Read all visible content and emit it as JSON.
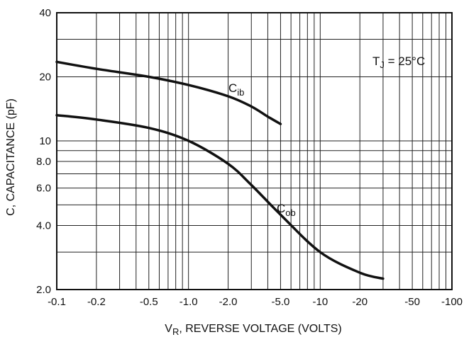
{
  "chart_data": {
    "type": "line",
    "title": "",
    "xlabel_main": "V",
    "xlabel_sub": "R",
    "xlabel_rest": ", REVERSE VOLTAGE (VOLTS)",
    "ylabel": "C, CAPACITANCE (pF)",
    "x_scale": "log",
    "y_scale": "log",
    "xlim": [
      0.1,
      100
    ],
    "ylim": [
      2,
      40
    ],
    "grid": true,
    "x_ticks": [
      {
        "value": 0.1,
        "label": "-0.1"
      },
      {
        "value": 0.2,
        "label": "-0.2"
      },
      {
        "value": 0.5,
        "label": "-0.5"
      },
      {
        "value": 1,
        "label": "-1.0"
      },
      {
        "value": 2,
        "label": "-2.0"
      },
      {
        "value": 5,
        "label": "-5.0"
      },
      {
        "value": 10,
        "label": "-10"
      },
      {
        "value": 20,
        "label": "-20"
      },
      {
        "value": 50,
        "label": "-50"
      },
      {
        "value": 100,
        "label": "-100"
      }
    ],
    "y_ticks": [
      {
        "value": 2,
        "label": "2.0"
      },
      {
        "value": 4,
        "label": "4.0"
      },
      {
        "value": 6,
        "label": "6.0"
      },
      {
        "value": 8,
        "label": "8.0"
      },
      {
        "value": 10,
        "label": "10"
      },
      {
        "value": 20,
        "label": "20"
      },
      {
        "value": 40,
        "label": "40"
      }
    ],
    "annotation": {
      "main": "T",
      "sub": "J",
      "rest": " = 25°C"
    },
    "series": [
      {
        "name_main": "C",
        "name_sub": "ib",
        "points": [
          {
            "x": 0.1,
            "y": 23.5
          },
          {
            "x": 0.2,
            "y": 21.8
          },
          {
            "x": 0.5,
            "y": 20.0
          },
          {
            "x": 1.0,
            "y": 18.3
          },
          {
            "x": 2.0,
            "y": 16.2
          },
          {
            "x": 3.0,
            "y": 14.5
          },
          {
            "x": 4.0,
            "y": 13.0
          },
          {
            "x": 5.0,
            "y": 12.0
          }
        ]
      },
      {
        "name_main": "C",
        "name_sub": "ob",
        "points": [
          {
            "x": 0.1,
            "y": 13.2
          },
          {
            "x": 0.2,
            "y": 12.6
          },
          {
            "x": 0.5,
            "y": 11.5
          },
          {
            "x": 1.0,
            "y": 10.0
          },
          {
            "x": 2.0,
            "y": 7.8
          },
          {
            "x": 3.0,
            "y": 6.2
          },
          {
            "x": 5.0,
            "y": 4.5
          },
          {
            "x": 10.0,
            "y": 3.0
          },
          {
            "x": 20.0,
            "y": 2.4
          },
          {
            "x": 30.0,
            "y": 2.25
          }
        ]
      }
    ]
  }
}
